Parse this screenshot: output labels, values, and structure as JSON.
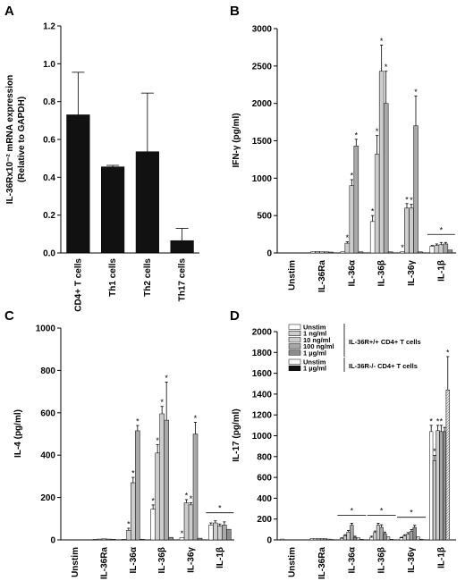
{
  "chart_data": [
    {
      "panel": "A",
      "type": "bar",
      "ylabel_lines": [
        "IL-36Rx10⁻² mRNA expression",
        "(Relative to GAPDH)"
      ],
      "yticks": [
        "0.0",
        "0.2",
        "0.4",
        "0.6",
        "0.8",
        "1.0",
        "1.2"
      ],
      "ylim": [
        0,
        1.2
      ],
      "categories": [
        "CD4+ T cells",
        "Th1 cells",
        "Th2 cells",
        "Th17 cells"
      ],
      "values": [
        0.73,
        0.455,
        0.535,
        0.065
      ],
      "errors": [
        0.225,
        0.008,
        0.31,
        0.065
      ],
      "bar_color": "#111111"
    },
    {
      "panel": "B",
      "type": "bar",
      "ylabel": "IFN-γ (pg/ml)",
      "yticks": [
        "0",
        "500",
        "1000",
        "1500",
        "2000",
        "2500",
        "3000"
      ],
      "ylim": [
        0,
        3000
      ],
      "categories": [
        "Unstim",
        "IL-36Ra",
        "IL-36α",
        "IL-36β",
        "IL-36γ",
        "IL-1β"
      ],
      "group_values": [
        [
          0,
          0,
          0,
          0,
          0,
          0
        ],
        [
          15,
          20,
          18,
          15,
          12
        ],
        [
          15,
          130,
          900,
          1430,
          15
        ],
        [
          420,
          1320,
          2430,
          2000,
          15
        ],
        [
          15,
          600,
          600,
          1700,
          15
        ],
        [
          90,
          100,
          110,
          120,
          40
        ]
      ],
      "group_errors": [
        [
          0,
          0,
          0,
          0,
          0,
          0
        ],
        [
          0,
          0,
          0,
          0,
          0
        ],
        [
          0,
          20,
          80,
          90,
          0
        ],
        [
          80,
          250,
          350,
          430,
          0
        ],
        [
          0,
          60,
          50,
          400,
          0
        ],
        [
          10,
          20,
          30,
          20,
          0
        ]
      ],
      "group_stars": [
        [],
        [],
        [
          1,
          2,
          3
        ],
        [
          0,
          1,
          2,
          3
        ],
        [
          0,
          1,
          2,
          3
        ],
        []
      ],
      "bracket_groups": [
        5
      ]
    },
    {
      "panel": "C",
      "type": "bar",
      "ylabel": "IL-4 (pg/ml)",
      "yticks": [
        "0",
        "200",
        "400",
        "600",
        "800",
        "1000"
      ],
      "ylim": [
        0,
        1000
      ],
      "categories": [
        "Unstim",
        "IL-36Ra",
        "IL-36α",
        "IL-36β",
        "IL-36γ",
        "IL-1β"
      ],
      "group_values": [
        [
          0,
          0,
          0,
          0,
          0,
          0
        ],
        [
          3,
          4,
          5,
          4,
          3
        ],
        [
          3,
          45,
          270,
          515,
          3
        ],
        [
          145,
          410,
          595,
          565,
          12
        ],
        [
          10,
          175,
          165,
          500,
          8
        ],
        [
          70,
          80,
          65,
          70,
          50
        ]
      ],
      "group_errors": [
        [
          0,
          0,
          0,
          0,
          0,
          0
        ],
        [
          0,
          0,
          0,
          0,
          0
        ],
        [
          0,
          10,
          25,
          25,
          0
        ],
        [
          20,
          40,
          35,
          180,
          0
        ],
        [
          0,
          15,
          10,
          55,
          0
        ],
        [
          10,
          10,
          10,
          15,
          0
        ]
      ],
      "group_stars": [
        [],
        [],
        [
          1,
          2,
          3
        ],
        [
          0,
          1,
          2,
          3
        ],
        [
          0,
          1,
          2,
          3
        ],
        []
      ],
      "bracket_groups": [
        5
      ]
    },
    {
      "panel": "D",
      "type": "bar",
      "ylabel": "IL-17 (pg/ml)",
      "yticks": [
        "0",
        "200",
        "400",
        "600",
        "800",
        "1000",
        "1200",
        "1400",
        "1600",
        "1800",
        "2000"
      ],
      "ylim": [
        0,
        2000
      ],
      "categories": [
        "Unstim",
        "IL-36Ra",
        "IL-36α",
        "IL-36β",
        "IL-36γ",
        "IL-1β"
      ],
      "group_values": [
        [
          8,
          0,
          0,
          0,
          0,
          0,
          0
        ],
        [
          12,
          12,
          12,
          12,
          12,
          8,
          4
        ],
        [
          15,
          40,
          75,
          140,
          25,
          20,
          5
        ],
        [
          25,
          70,
          140,
          120,
          60,
          30,
          5
        ],
        [
          20,
          40,
          55,
          80,
          120,
          30,
          5
        ],
        [
          1040,
          760,
          1050,
          1040,
          1040,
          1440,
          0
        ]
      ],
      "group_errors": [
        [
          0,
          0,
          0,
          0,
          0,
          0,
          0
        ],
        [
          0,
          0,
          0,
          0,
          0,
          0,
          0
        ],
        [
          5,
          10,
          15,
          20,
          10,
          0,
          0
        ],
        [
          10,
          15,
          20,
          25,
          15,
          0,
          0
        ],
        [
          5,
          10,
          15,
          20,
          20,
          0,
          0
        ],
        [
          60,
          50,
          50,
          60,
          40,
          320,
          0
        ]
      ],
      "group_stars": [
        [],
        [],
        [],
        [],
        [],
        [
          0,
          1,
          2,
          3,
          5
        ]
      ],
      "bracket_groups": [
        2,
        3,
        4
      ],
      "legend": {
        "group1_items": [
          "Unstim",
          "1 ng/ml",
          "10 ng/ml",
          "100 ng/ml",
          "1 µg/ml"
        ],
        "group1_label": "IL-36R+/+ CD4+ T cells",
        "group2_items": [
          "Unstim",
          "1 µg/ml"
        ],
        "group2_label": "IL-36R-/- CD4+ T cells"
      }
    }
  ]
}
